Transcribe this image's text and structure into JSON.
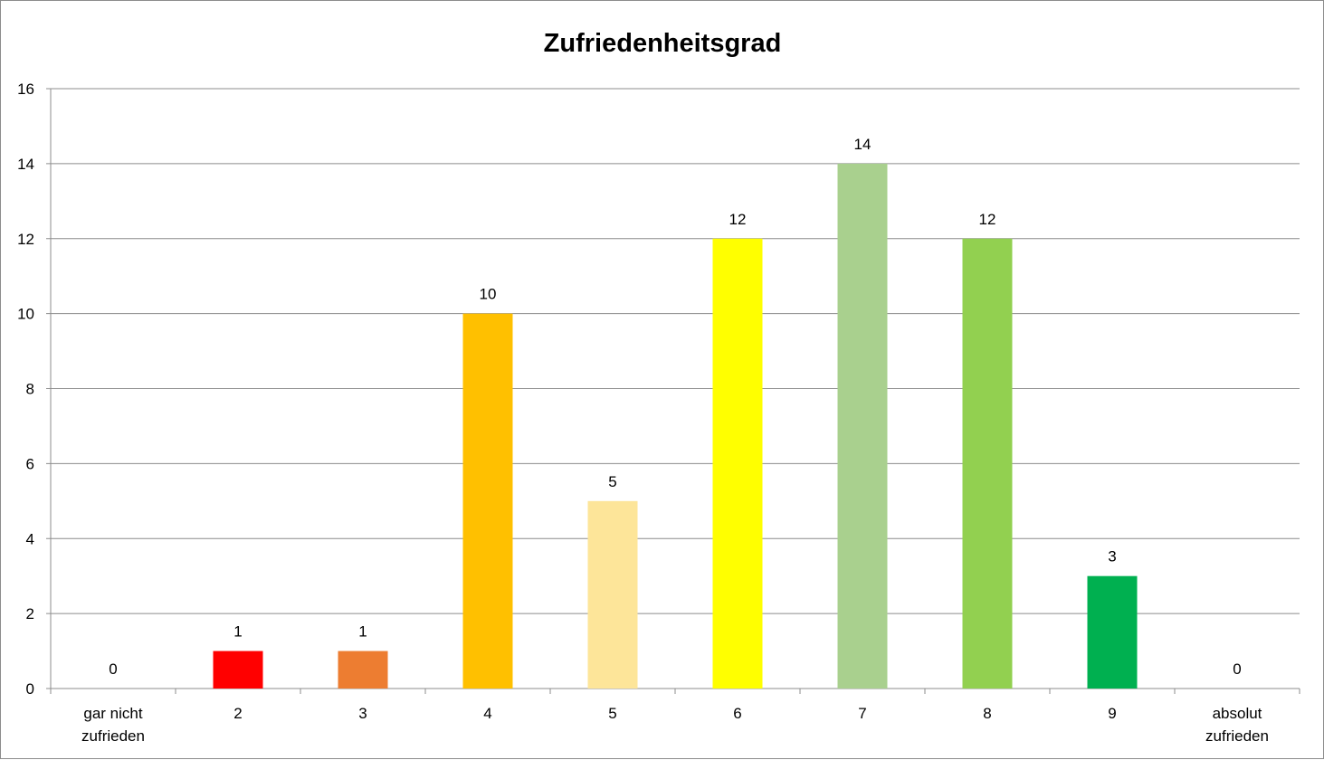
{
  "chart_data": {
    "type": "bar",
    "title": "Zufriedenheitsgrad",
    "xlabel": "",
    "ylabel": "",
    "categories": [
      [
        "gar nicht",
        "zufrieden"
      ],
      [
        "2"
      ],
      [
        "3"
      ],
      [
        "4"
      ],
      [
        "5"
      ],
      [
        "6"
      ],
      [
        "7"
      ],
      [
        "8"
      ],
      [
        "9"
      ],
      [
        "absolut",
        "zufrieden"
      ]
    ],
    "values": [
      0,
      1,
      1,
      10,
      5,
      12,
      14,
      12,
      3,
      0
    ],
    "colors": [
      "#ff0000",
      "#ff0000",
      "#ed7d31",
      "#ffc000",
      "#fde599",
      "#ffff00",
      "#a9d08e",
      "#92d050",
      "#00b050",
      "#00b050"
    ],
    "ylim": [
      0,
      16
    ],
    "yticks": [
      0,
      2,
      4,
      6,
      8,
      10,
      12,
      14,
      16
    ],
    "grid": true,
    "legend": "none",
    "data_labels": true
  }
}
